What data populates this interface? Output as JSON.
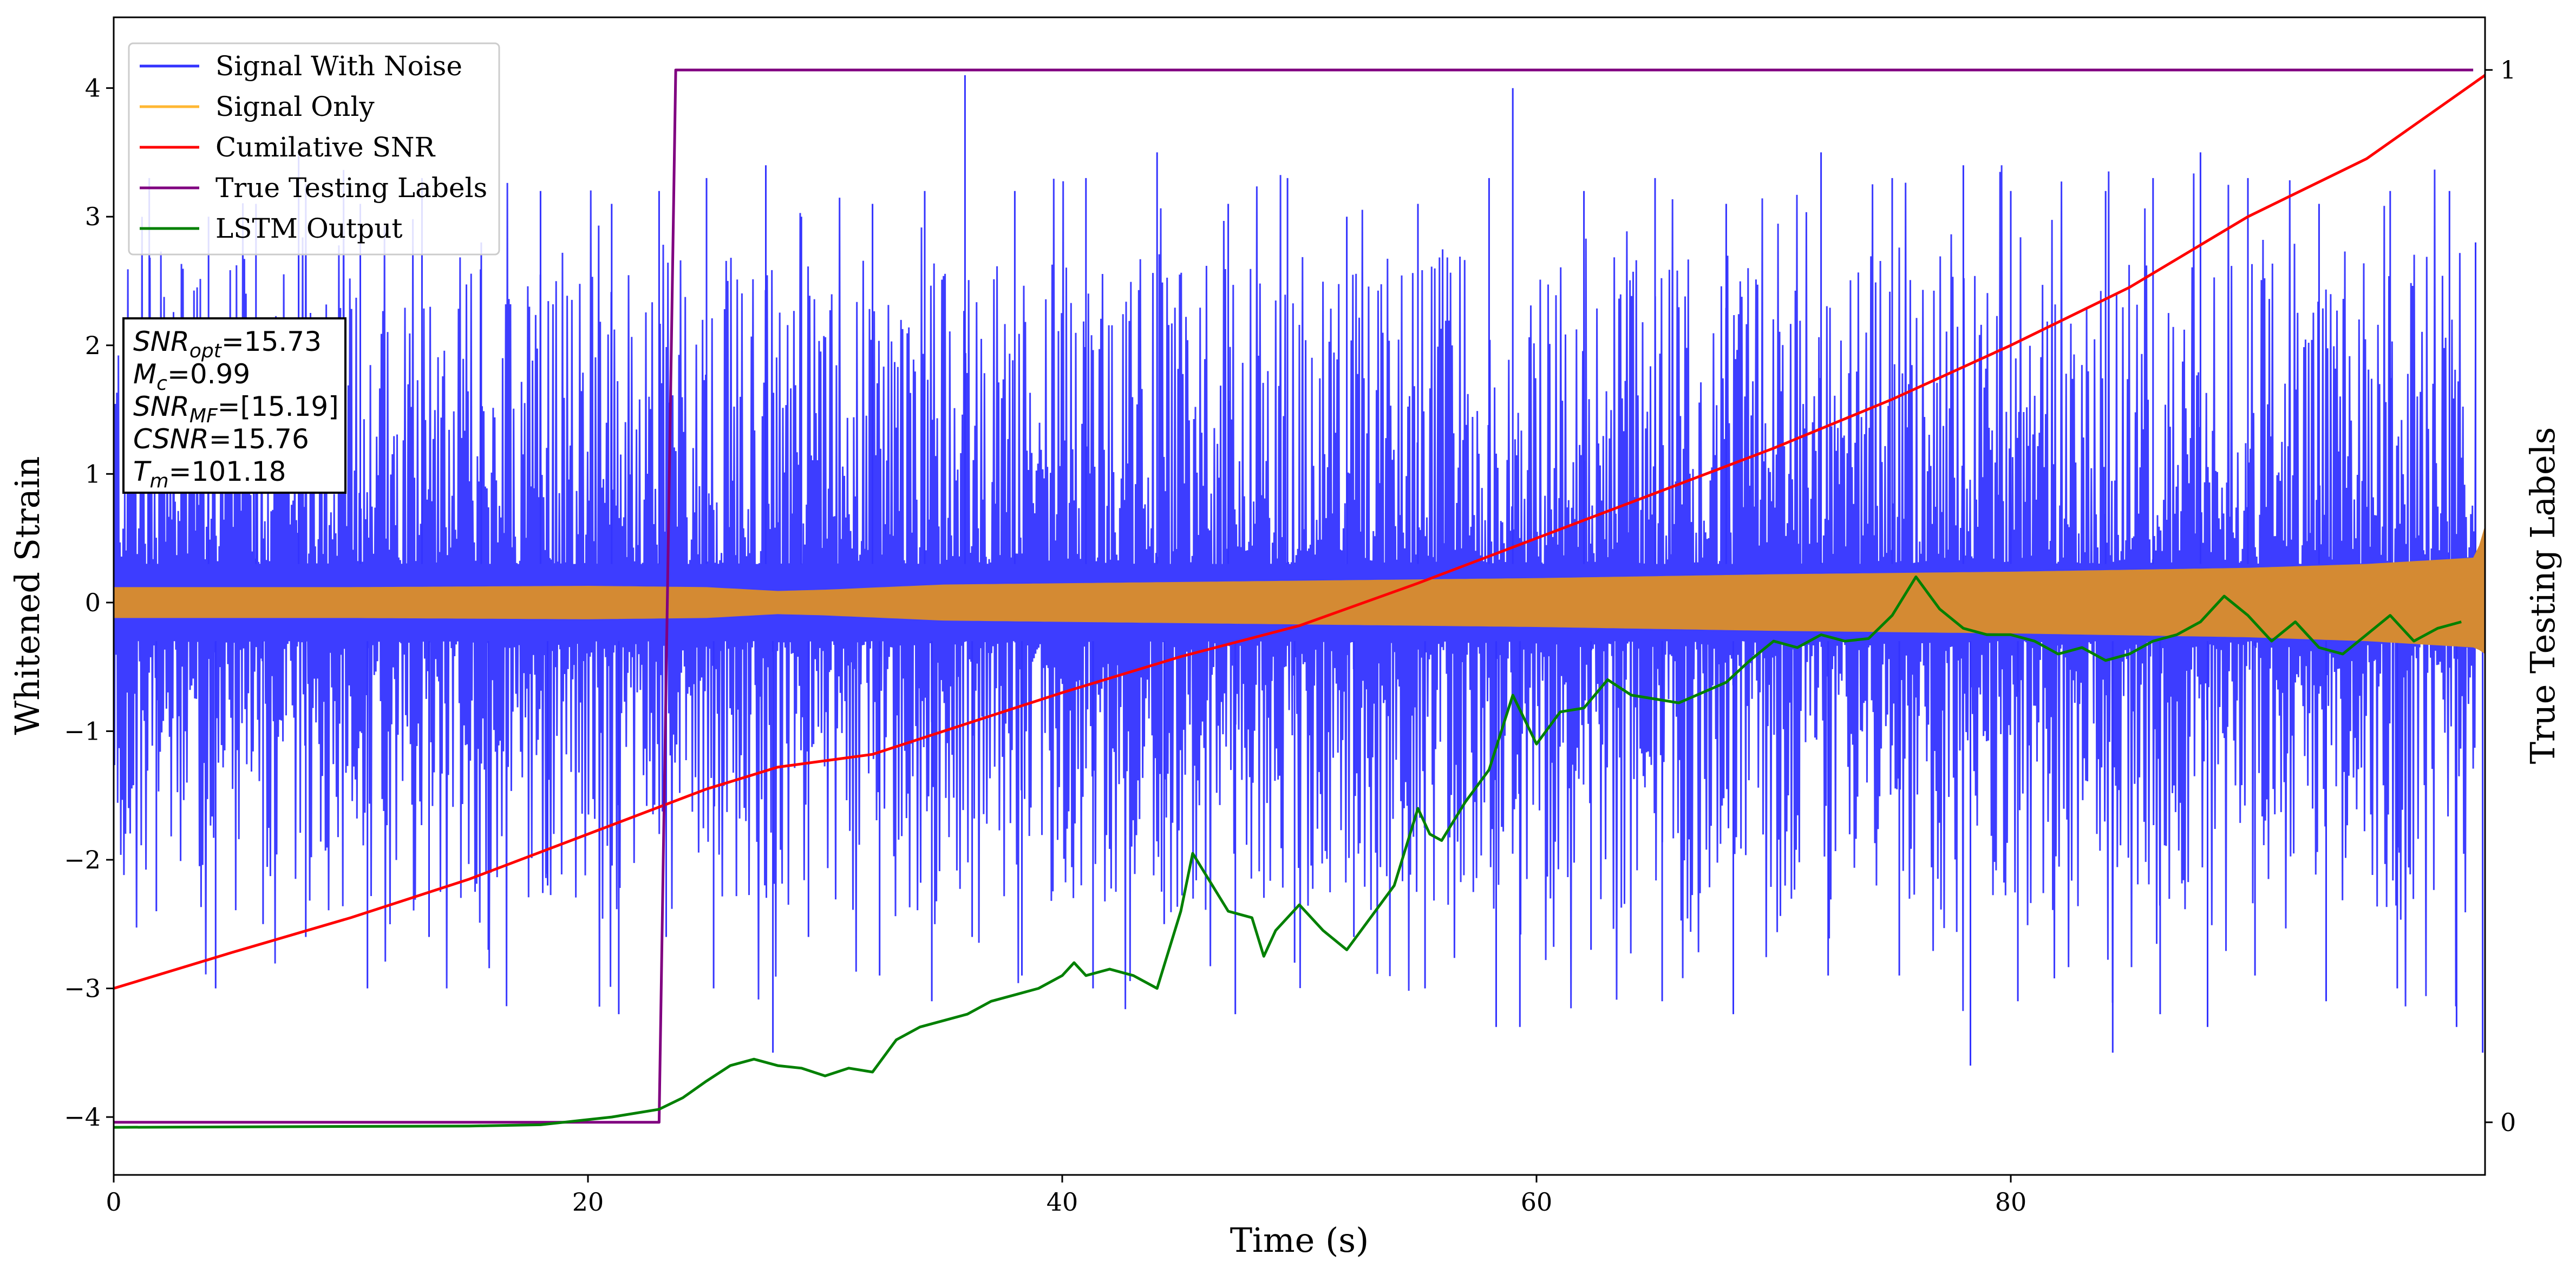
{
  "chart_data": {
    "type": "line",
    "xlabel": "Time (s)",
    "ylabel": "Whitened Strain",
    "y2label": "True Testing Labels",
    "xlim": [
      0,
      100
    ],
    "ylim": [
      -4.45,
      4.55
    ],
    "y2lim": [
      -0.05,
      1.05
    ],
    "x_ticks": [
      0,
      20,
      40,
      60,
      80
    ],
    "x_tick_labels": [
      "0",
      "20",
      "40",
      "60",
      "80"
    ],
    "y_ticks": [
      -4,
      -3,
      -2,
      -1,
      0,
      1,
      2,
      3,
      4
    ],
    "y_tick_labels": [
      "−4",
      "−3",
      "−2",
      "−1",
      "0",
      "1",
      "2",
      "3",
      "4"
    ],
    "y2_ticks": [
      0,
      1
    ],
    "y2_tick_labels": [
      "0",
      "1"
    ],
    "grid": false,
    "legend": {
      "placement": "top-left",
      "entries": [
        {
          "label": "Signal With Noise",
          "color": "#3333ff"
        },
        {
          "label": "Signal Only",
          "color": "#ffb733"
        },
        {
          "label": "Cumilative SNR",
          "color": "#ff0000"
        },
        {
          "label": "True Testing Labels",
          "color": "#800080"
        },
        {
          "label": "LSTM Output",
          "color": "#008000"
        }
      ]
    },
    "annotation": {
      "placement": "left",
      "lines": [
        {
          "base": "SNR",
          "sub": "opt",
          "value": "=15.73"
        },
        {
          "base": "M",
          "sub": "c",
          "value": "=0.99"
        },
        {
          "base": "SNR",
          "sub": "MF",
          "value": "=[15.19]"
        },
        {
          "base": "CSNR",
          "sub": "",
          "value": "=15.76"
        },
        {
          "base": "T",
          "sub": "m",
          "value": "=101.18"
        }
      ]
    },
    "series": [
      {
        "name": "Signal With Noise",
        "axis": "left",
        "color": "#3333ff",
        "style": "dense noise band",
        "band_low_approx": -4.0,
        "band_high_approx": 4.1,
        "x": [
          1.5,
          4.0,
          6.0,
          7.8,
          10.4,
          13.0,
          15.5,
          18.0,
          21.0,
          23.0,
          25.0,
          27.5,
          29.0,
          32.0,
          34.2,
          35.9,
          38.0,
          41.0,
          44.0,
          47.0,
          49.5,
          52.0,
          55.0,
          58.0,
          59.0,
          62.0,
          65.0,
          68.0,
          72.0,
          75.0,
          78.0,
          80.0,
          84.0,
          86.0,
          88.0,
          90.0,
          93.0,
          96.0,
          98.5,
          99.6
        ],
        "peaks": [
          3.3,
          3.0,
          3.1,
          3.5,
          3.1,
          3.3,
          2.8,
          3.2,
          3.1,
          3.2,
          3.3,
          3.4,
          3.0,
          3.1,
          3.2,
          4.1,
          3.2,
          3.3,
          3.5,
          3.1,
          3.3,
          3.0,
          3.1,
          3.3,
          4.0,
          3.2,
          3.3,
          3.1,
          3.5,
          3.3,
          3.4,
          3.2,
          3.2,
          3.3,
          3.5,
          3.3,
          3.1,
          3.2,
          3.2,
          2.8
        ],
        "troughs": [
          -2.4,
          -3.0,
          -2.5,
          -2.6,
          -3.0,
          -2.6,
          -2.7,
          -2.2,
          -3.2,
          -2.6,
          -3.0,
          -3.5,
          -2.6,
          -2.9,
          -3.1,
          -2.6,
          -2.9,
          -3.0,
          -2.5,
          -3.2,
          -2.8,
          -2.6,
          -3.0,
          -3.3,
          -3.3,
          -2.7,
          -3.1,
          -3.2,
          -2.9,
          -2.9,
          -3.6,
          -3.1,
          -3.5,
          -3.2,
          -3.3,
          -2.9,
          -3.1,
          -3.0,
          -3.3,
          -3.5
        ]
      },
      {
        "name": "Signal Only",
        "axis": "left",
        "color": "#ffb733",
        "style": "oscillating envelope",
        "x": [
          0,
          10,
          20,
          25,
          28,
          30,
          35,
          40,
          50,
          60,
          70,
          80,
          90,
          95,
          99.6,
          100
        ],
        "upper": [
          0.12,
          0.12,
          0.13,
          0.12,
          0.09,
          0.1,
          0.14,
          0.15,
          0.17,
          0.19,
          0.22,
          0.24,
          0.27,
          0.3,
          0.35,
          0.6
        ],
        "lower": [
          -0.12,
          -0.12,
          -0.13,
          -0.12,
          -0.09,
          -0.1,
          -0.14,
          -0.15,
          -0.17,
          -0.19,
          -0.22,
          -0.24,
          -0.27,
          -0.3,
          -0.35,
          -0.4
        ]
      },
      {
        "name": "Cumilative SNR",
        "axis": "left",
        "color": "#ff0000",
        "x": [
          0,
          5,
          10,
          15,
          20,
          25,
          28,
          32,
          35,
          40,
          45,
          50,
          55,
          60,
          65,
          70,
          75,
          80,
          85,
          90,
          95,
          100
        ],
        "y": [
          -3.0,
          -2.72,
          -2.45,
          -2.15,
          -1.8,
          -1.45,
          -1.28,
          -1.18,
          -1.0,
          -0.7,
          -0.42,
          -0.18,
          0.15,
          0.5,
          0.85,
          1.2,
          1.58,
          2.0,
          2.45,
          3.0,
          3.45,
          4.1
        ]
      },
      {
        "name": "True Testing Labels",
        "axis": "right",
        "color": "#800080",
        "x": [
          0,
          23.0,
          23.7,
          99.5
        ],
        "y": [
          0,
          0,
          1,
          1
        ]
      },
      {
        "name": "LSTM Output",
        "axis": "left",
        "color": "#008000",
        "x": [
          0,
          15,
          18,
          20,
          21,
          22,
          23,
          24,
          25,
          26,
          27,
          28,
          29,
          30,
          31,
          32,
          33,
          34,
          35,
          36,
          37,
          38,
          39,
          40,
          40.5,
          41,
          42,
          43,
          44,
          45,
          45.5,
          46,
          47,
          48,
          48.5,
          49,
          50,
          51,
          52,
          53,
          54,
          55,
          55.5,
          56,
          57,
          58,
          59,
          60,
          61,
          62,
          63,
          64,
          65,
          66,
          67,
          68,
          69,
          70,
          71,
          72,
          73,
          74,
          75,
          76,
          77,
          78,
          79,
          80,
          81,
          82,
          83,
          84,
          85,
          86,
          87,
          88,
          89,
          90,
          91,
          92,
          93,
          94,
          95,
          96,
          97,
          98,
          99
        ],
        "y": [
          -4.08,
          -4.07,
          -4.06,
          -4.02,
          -4.0,
          -3.97,
          -3.94,
          -3.85,
          -3.72,
          -3.6,
          -3.55,
          -3.6,
          -3.62,
          -3.68,
          -3.62,
          -3.65,
          -3.4,
          -3.3,
          -3.25,
          -3.2,
          -3.1,
          -3.05,
          -3.0,
          -2.9,
          -2.8,
          -2.9,
          -2.85,
          -2.9,
          -3.0,
          -2.4,
          -1.95,
          -2.1,
          -2.4,
          -2.45,
          -2.75,
          -2.55,
          -2.35,
          -2.55,
          -2.7,
          -2.45,
          -2.2,
          -1.6,
          -1.8,
          -1.85,
          -1.55,
          -1.3,
          -0.72,
          -1.1,
          -0.85,
          -0.82,
          -0.6,
          -0.72,
          -0.75,
          -0.78,
          -0.7,
          -0.62,
          -0.45,
          -0.3,
          -0.35,
          -0.25,
          -0.3,
          -0.28,
          -0.1,
          0.2,
          -0.05,
          -0.2,
          -0.25,
          -0.25,
          -0.3,
          -0.4,
          -0.35,
          -0.45,
          -0.4,
          -0.3,
          -0.25,
          -0.15,
          0.05,
          -0.1,
          -0.3,
          -0.15,
          -0.35,
          -0.4,
          -0.25,
          -0.1,
          -0.3,
          -0.2,
          -0.15
        ]
      }
    ]
  }
}
